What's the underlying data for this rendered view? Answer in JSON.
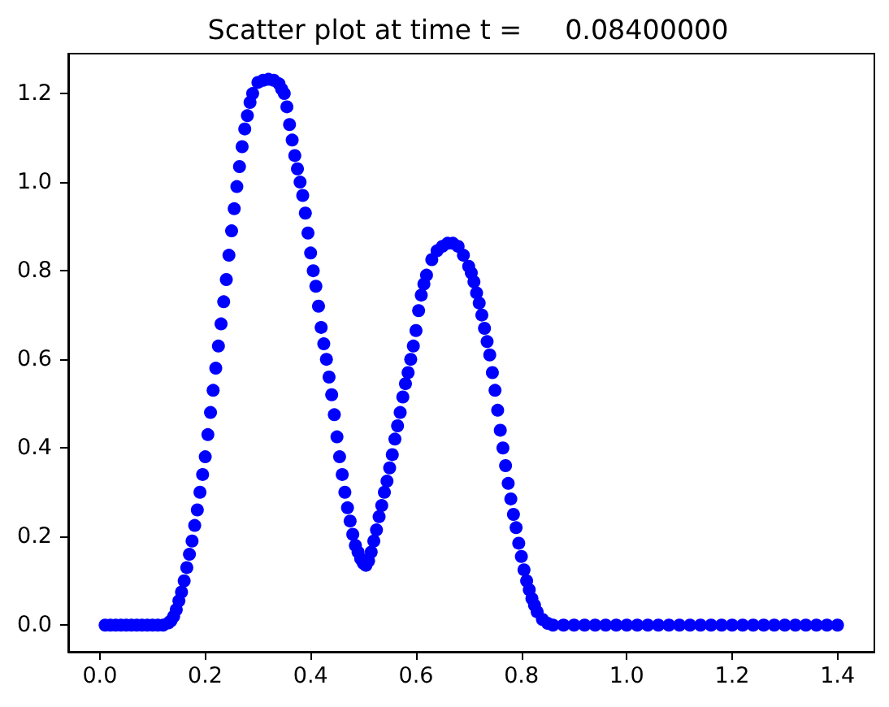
{
  "chart_data": {
    "type": "scatter",
    "title": "Scatter plot at time t =     0.08400000",
    "color": "#0000ff",
    "marker": "circle",
    "x": [
      0.01,
      0.02,
      0.03,
      0.04,
      0.05,
      0.06,
      0.07,
      0.08,
      0.09,
      0.1,
      0.11,
      0.12,
      0.13,
      0.135,
      0.14,
      0.145,
      0.15,
      0.155,
      0.16,
      0.165,
      0.17,
      0.175,
      0.18,
      0.185,
      0.19,
      0.195,
      0.2,
      0.205,
      0.21,
      0.215,
      0.22,
      0.225,
      0.23,
      0.235,
      0.24,
      0.245,
      0.25,
      0.255,
      0.26,
      0.265,
      0.27,
      0.275,
      0.28,
      0.285,
      0.29,
      0.3,
      0.31,
      0.32,
      0.33,
      0.34,
      0.345,
      0.35,
      0.355,
      0.36,
      0.365,
      0.37,
      0.375,
      0.38,
      0.385,
      0.39,
      0.395,
      0.4,
      0.405,
      0.41,
      0.415,
      0.42,
      0.425,
      0.43,
      0.435,
      0.44,
      0.445,
      0.45,
      0.455,
      0.46,
      0.465,
      0.47,
      0.475,
      0.48,
      0.485,
      0.49,
      0.495,
      0.5,
      0.505,
      0.51,
      0.515,
      0.52,
      0.525,
      0.53,
      0.535,
      0.54,
      0.545,
      0.55,
      0.555,
      0.56,
      0.565,
      0.57,
      0.575,
      0.58,
      0.585,
      0.59,
      0.595,
      0.6,
      0.605,
      0.61,
      0.615,
      0.62,
      0.63,
      0.64,
      0.65,
      0.66,
      0.67,
      0.68,
      0.69,
      0.7,
      0.705,
      0.71,
      0.715,
      0.72,
      0.725,
      0.73,
      0.735,
      0.74,
      0.745,
      0.75,
      0.755,
      0.76,
      0.765,
      0.77,
      0.775,
      0.78,
      0.785,
      0.79,
      0.795,
      0.8,
      0.805,
      0.81,
      0.815,
      0.82,
      0.825,
      0.83,
      0.84,
      0.85,
      0.86,
      0.88,
      0.9,
      0.92,
      0.94,
      0.96,
      0.98,
      1.0,
      1.02,
      1.04,
      1.06,
      1.08,
      1.1,
      1.12,
      1.14,
      1.16,
      1.18,
      1.2,
      1.22,
      1.24,
      1.26,
      1.28,
      1.3,
      1.32,
      1.34,
      1.36,
      1.38,
      1.4
    ],
    "values": [
      0,
      0,
      0,
      0,
      0,
      0,
      0,
      0,
      0,
      0,
      0,
      0,
      0.005,
      0.01,
      0.02,
      0.035,
      0.055,
      0.075,
      0.1,
      0.13,
      0.16,
      0.19,
      0.225,
      0.26,
      0.3,
      0.34,
      0.38,
      0.43,
      0.48,
      0.53,
      0.58,
      0.63,
      0.68,
      0.73,
      0.78,
      0.835,
      0.89,
      0.94,
      0.99,
      1.035,
      1.08,
      1.12,
      1.15,
      1.18,
      1.2,
      1.225,
      1.23,
      1.232,
      1.23,
      1.222,
      1.21,
      1.2,
      1.17,
      1.13,
      1.095,
      1.06,
      1.03,
      1.0,
      0.97,
      0.93,
      0.885,
      0.84,
      0.8,
      0.765,
      0.72,
      0.672,
      0.635,
      0.6,
      0.56,
      0.52,
      0.475,
      0.425,
      0.38,
      0.34,
      0.3,
      0.265,
      0.235,
      0.205,
      0.18,
      0.165,
      0.15,
      0.14,
      0.135,
      0.145,
      0.165,
      0.19,
      0.215,
      0.245,
      0.27,
      0.3,
      0.325,
      0.355,
      0.385,
      0.42,
      0.45,
      0.48,
      0.515,
      0.545,
      0.57,
      0.6,
      0.63,
      0.665,
      0.71,
      0.745,
      0.77,
      0.79,
      0.825,
      0.845,
      0.855,
      0.862,
      0.862,
      0.855,
      0.835,
      0.81,
      0.795,
      0.775,
      0.75,
      0.727,
      0.7,
      0.67,
      0.64,
      0.61,
      0.57,
      0.53,
      0.485,
      0.44,
      0.4,
      0.36,
      0.32,
      0.285,
      0.25,
      0.22,
      0.185,
      0.155,
      0.125,
      0.1,
      0.08,
      0.06,
      0.045,
      0.03,
      0.013,
      0.004,
      0,
      0,
      0,
      0,
      0,
      0,
      0,
      0,
      0,
      0,
      0,
      0,
      0,
      0,
      0,
      0,
      0,
      0,
      0,
      0,
      0,
      0,
      0,
      0,
      0,
      0,
      0,
      0
    ],
    "xlim": [
      -0.06,
      1.47
    ],
    "xticks": [
      {
        "value": 0,
        "label": "0.0"
      },
      0.2,
      0.4,
      0.6,
      0.8,
      {
        "value": 1,
        "label": "1.0"
      },
      1.2,
      1.4
    ],
    "ylim": [
      -0.06,
      1.29
    ],
    "yticks": [
      {
        "value": 0,
        "label": "0.0"
      },
      0.2,
      0.4,
      0.6,
      0.8,
      {
        "value": 1,
        "label": "1.0"
      },
      1.2
    ]
  }
}
